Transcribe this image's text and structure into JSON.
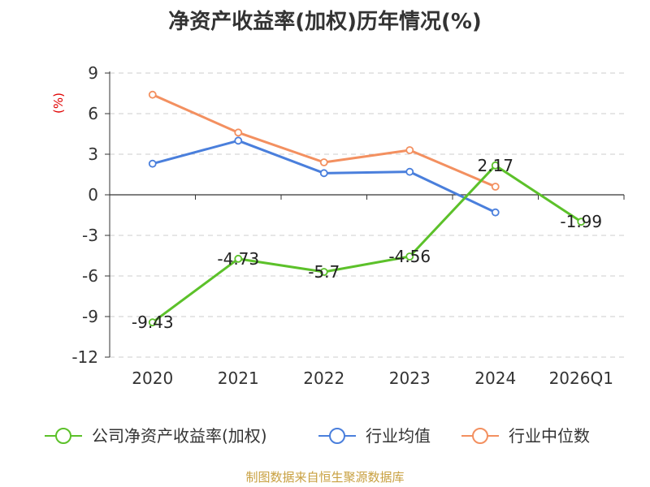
{
  "chart_data": {
    "type": "line",
    "title": "净资产收益率(加权)历年情况(%)",
    "ylabel": "(%)",
    "categories": [
      "2020",
      "2021",
      "2022",
      "2023",
      "2024",
      "2026Q1"
    ],
    "ylim": [
      -12,
      9
    ],
    "yticks": [
      9,
      6,
      3,
      0,
      -3,
      -6,
      -9,
      -12
    ],
    "grid": "dashed-horizontal",
    "legend_position": "bottom",
    "series": [
      {
        "name": "公司净资产收益率(加权)",
        "color": "#5cc12a",
        "values": [
          -9.43,
          -4.73,
          -5.7,
          -4.56,
          2.17,
          -1.99
        ],
        "labels": [
          "-9.43",
          "-4.73",
          "-5.7",
          "-4.56",
          "2.17",
          "-1.99"
        ],
        "show_labels": true
      },
      {
        "name": "行业均值",
        "color": "#4a7fdc",
        "values": [
          2.3,
          4.0,
          1.6,
          1.7,
          -1.3,
          null
        ],
        "show_labels": false
      },
      {
        "name": "行业中位数",
        "color": "#f39060",
        "values": [
          7.4,
          4.6,
          2.4,
          3.3,
          0.6,
          null
        ],
        "show_labels": false
      }
    ]
  },
  "source": "制图数据来自恒生聚源数据库",
  "colors": {
    "axis": "#333333",
    "grid": "#cccccc",
    "ylabel": "#e00000",
    "source": "#c8a040"
  }
}
